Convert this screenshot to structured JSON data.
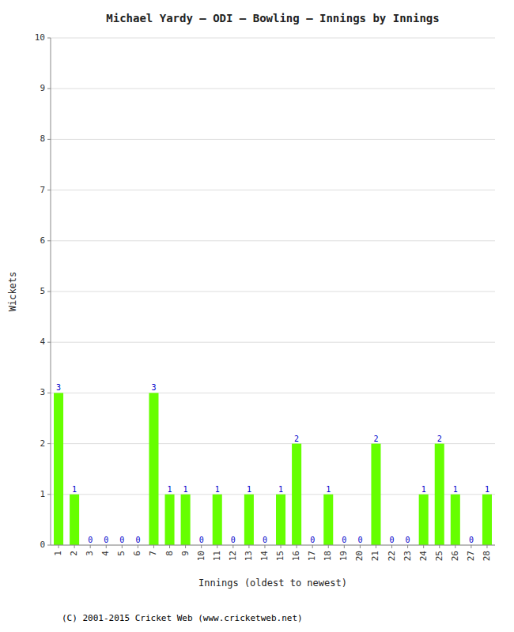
{
  "chart_data": {
    "type": "bar",
    "title": "Michael Yardy – ODI – Bowling – Innings by Innings",
    "xlabel": "Innings (oldest to newest)",
    "ylabel": "Wickets",
    "footer": "(C) 2001-2015 Cricket Web (www.cricketweb.net)",
    "x": [
      1,
      2,
      3,
      4,
      5,
      6,
      7,
      8,
      9,
      10,
      11,
      12,
      13,
      14,
      15,
      16,
      17,
      18,
      19,
      20,
      21,
      22,
      23,
      24,
      25,
      26,
      27,
      28
    ],
    "values": [
      3,
      1,
      0,
      0,
      0,
      0,
      3,
      1,
      1,
      0,
      1,
      0,
      1,
      0,
      1,
      2,
      0,
      1,
      0,
      0,
      2,
      0,
      0,
      1,
      2,
      1,
      0,
      1
    ],
    "color": "#66ff00",
    "xlim": [
      0.5,
      28.5
    ],
    "xticks": [
      1,
      2,
      3,
      4,
      5,
      6,
      7,
      8,
      9,
      10,
      11,
      12,
      13,
      14,
      15,
      16,
      17,
      18,
      19,
      20,
      21,
      22,
      23,
      24,
      25,
      26,
      27,
      28
    ],
    "ylim": [
      0,
      10
    ],
    "yticks": [
      0,
      1,
      2,
      3,
      4,
      5,
      6,
      7,
      8,
      9,
      10
    ],
    "grid": true,
    "data_labels": true
  }
}
